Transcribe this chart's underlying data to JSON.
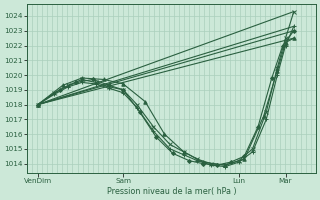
{
  "bg_color": "#cce8d8",
  "grid_color": "#aacfbc",
  "line_color": "#2a6040",
  "xlabel_label": "Pression niveau de la mer( hPa )",
  "ytick_vals": [
    1014,
    1015,
    1016,
    1017,
    1018,
    1019,
    1020,
    1021,
    1022,
    1023,
    1024
  ],
  "xtick_labels": [
    "VenDim",
    "Sam",
    "Lun",
    "Mar"
  ],
  "xtick_positions": [
    0.04,
    0.35,
    0.77,
    0.94
  ],
  "ylim": [
    1013.4,
    1024.8
  ],
  "xlim": [
    0.0,
    1.05
  ],
  "n_vgrid": 58,
  "straight_lines": [
    {
      "x0": 0.04,
      "y0": 1018.0,
      "x1": 0.97,
      "y1": 1024.3
    },
    {
      "x0": 0.04,
      "y0": 1018.0,
      "x1": 0.97,
      "y1": 1023.3
    },
    {
      "x0": 0.04,
      "y0": 1018.0,
      "x1": 0.97,
      "y1": 1023.0
    },
    {
      "x0": 0.04,
      "y0": 1018.0,
      "x1": 0.97,
      "y1": 1022.5
    }
  ],
  "curves": [
    {
      "x": [
        0.04,
        0.1,
        0.15,
        0.2,
        0.25,
        0.3,
        0.35,
        0.4,
        0.46,
        0.52,
        0.57,
        0.62,
        0.67,
        0.72,
        0.77,
        0.82,
        0.87,
        0.91,
        0.94,
        0.97
      ],
      "y": [
        1018.0,
        1018.8,
        1019.3,
        1019.7,
        1019.5,
        1019.2,
        1019.0,
        1018.0,
        1016.5,
        1015.3,
        1014.8,
        1014.3,
        1014.0,
        1013.9,
        1014.2,
        1015.0,
        1017.5,
        1020.5,
        1022.5,
        1024.3
      ],
      "marker": "x",
      "ms": 2.5,
      "lw": 0.8
    },
    {
      "x": [
        0.04,
        0.1,
        0.15,
        0.2,
        0.25,
        0.3,
        0.35,
        0.4,
        0.46,
        0.52,
        0.57,
        0.62,
        0.67,
        0.72,
        0.77,
        0.82,
        0.87,
        0.91,
        0.94,
        0.97
      ],
      "y": [
        1018.0,
        1018.7,
        1019.2,
        1019.5,
        1019.4,
        1019.1,
        1018.8,
        1017.8,
        1016.2,
        1015.0,
        1014.6,
        1014.2,
        1013.9,
        1013.8,
        1014.1,
        1014.8,
        1017.0,
        1020.0,
        1022.0,
        1023.3
      ],
      "marker": "+",
      "ms": 3.5,
      "lw": 0.8
    },
    {
      "x": [
        0.04,
        0.12,
        0.18,
        0.24,
        0.3,
        0.35,
        0.41,
        0.47,
        0.53,
        0.59,
        0.64,
        0.69,
        0.74,
        0.79,
        0.84,
        0.89,
        0.93,
        0.97
      ],
      "y": [
        1018.0,
        1019.0,
        1019.5,
        1019.7,
        1019.3,
        1019.0,
        1017.5,
        1015.8,
        1014.7,
        1014.2,
        1014.0,
        1013.9,
        1014.1,
        1014.5,
        1016.5,
        1019.8,
        1022.0,
        1023.0
      ],
      "marker": "D",
      "ms": 2.0,
      "lw": 0.8
    },
    {
      "x": [
        0.04,
        0.13,
        0.2,
        0.28,
        0.35,
        0.43,
        0.5,
        0.57,
        0.64,
        0.72,
        0.79,
        0.86,
        0.91,
        0.94,
        0.97
      ],
      "y": [
        1018.0,
        1019.3,
        1019.8,
        1019.7,
        1019.4,
        1018.2,
        1016.0,
        1014.8,
        1014.1,
        1013.9,
        1014.3,
        1017.2,
        1020.3,
        1022.2,
        1022.5
      ],
      "marker": "^",
      "ms": 2.5,
      "lw": 0.8
    }
  ]
}
